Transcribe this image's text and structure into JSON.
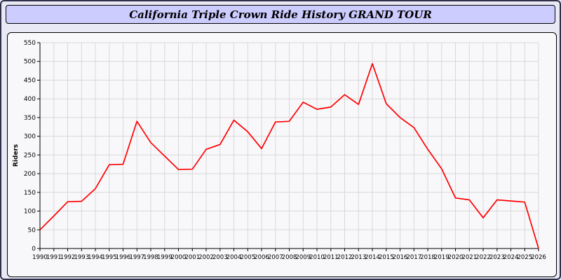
{
  "header": {
    "title": "California Triple Crown Ride History GRAND TOUR"
  },
  "chart_data": {
    "type": "line",
    "title": "California Triple Crown Ride History GRAND TOUR",
    "xlabel": "",
    "ylabel": "Riders",
    "ylim": [
      0,
      550
    ],
    "ytick_step": 50,
    "grid": true,
    "legend_position": "none",
    "x": [
      1990,
      1991,
      1992,
      1993,
      1994,
      1995,
      1996,
      1997,
      1998,
      1999,
      2000,
      2001,
      2002,
      2003,
      2004,
      2005,
      2006,
      2007,
      2008,
      2009,
      2010,
      2011,
      2012,
      2013,
      2014,
      2015,
      2016,
      2017,
      2018,
      2019,
      2020,
      2021,
      2022,
      2023,
      2024,
      2025,
      2026
    ],
    "series": [
      {
        "name": "Riders",
        "color": "#ff0000",
        "values": [
          50,
          87,
          125,
          126,
          160,
          224,
          225,
          340,
          283,
          247,
          211,
          212,
          265,
          278,
          343,
          312,
          267,
          338,
          340,
          391,
          372,
          378,
          411,
          385,
          494,
          387,
          350,
          323,
          265,
          213,
          135,
          130,
          82,
          130,
          127,
          124,
          0
        ]
      }
    ],
    "colors": {
      "line": "#ff0000",
      "grid": "#d8d8d8",
      "axis": "#000000",
      "panel_bg": "#f8f8fb",
      "titlebar_bg": "#ccccff",
      "page_bg": "#e9e9f6"
    }
  }
}
